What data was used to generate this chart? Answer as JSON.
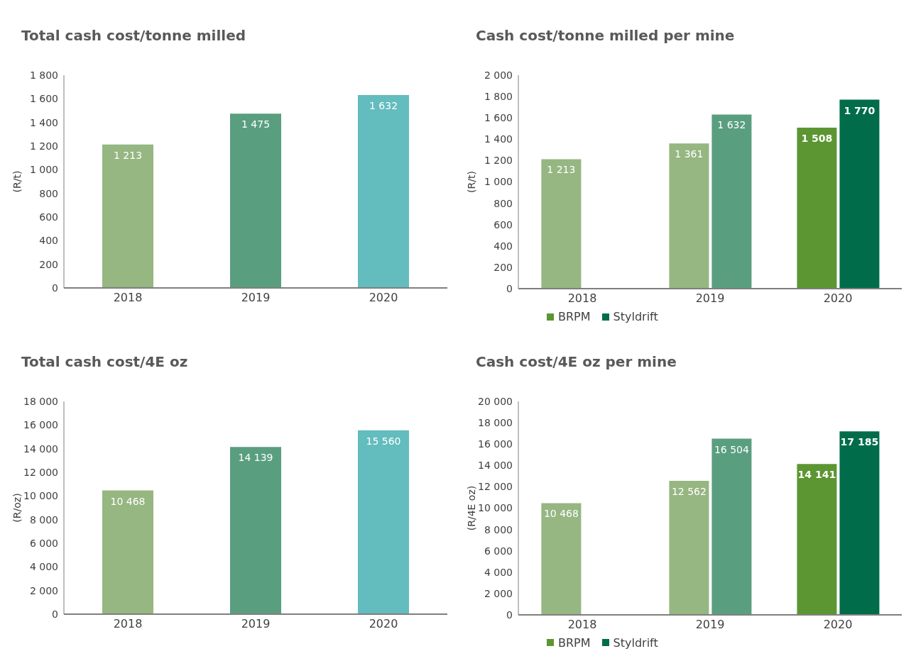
{
  "chart_data": [
    {
      "type": "bar",
      "title": "Total cash cost/tonne milled",
      "ylabel": "(R/t)",
      "categories": [
        "2018",
        "2019",
        "2020"
      ],
      "values": [
        1213,
        1475,
        1632
      ],
      "colors": [
        "#96b682",
        "#5a9e80",
        "#63bcbd"
      ],
      "value_labels": [
        "1 213",
        "1 475",
        "1 632"
      ],
      "ylim": [
        0,
        1800
      ],
      "yticks": [
        {
          "value": 0,
          "label": "0"
        },
        {
          "value": 200,
          "label": "200"
        },
        {
          "value": 400,
          "label": "400"
        },
        {
          "value": 600,
          "label": "600"
        },
        {
          "value": 800,
          "label": "800"
        },
        {
          "value": 1000,
          "label": "1 000"
        },
        {
          "value": 1200,
          "label": "1 200"
        },
        {
          "value": 1400,
          "label": "1 400"
        },
        {
          "value": 1600,
          "label": "1 600"
        },
        {
          "value": 1800,
          "label": "1 800"
        }
      ],
      "grid": false,
      "legend": false
    },
    {
      "type": "bar",
      "title": "Cash cost/tonne milled per mine",
      "ylabel": "(R/t)",
      "categories": [
        "2018",
        "2019",
        "2020"
      ],
      "series": [
        {
          "name": "BRPM",
          "color": "#5c9632",
          "colors": [
            "#96b682",
            "#96b682",
            "#5c9632"
          ],
          "values": [
            1213,
            1361,
            1508
          ],
          "value_labels": [
            "1 213",
            "1 361",
            "1 508"
          ]
        },
        {
          "name": "Styldrift",
          "color": "#006c4a",
          "colors": [
            "#5a9e80",
            "#5a9e80",
            "#006c4a"
          ],
          "values": [
            null,
            1632,
            1770
          ],
          "value_labels": [
            null,
            "1 632",
            "1 770"
          ]
        }
      ],
      "ylim": [
        0,
        2000
      ],
      "yticks": [
        {
          "value": 0,
          "label": "0"
        },
        {
          "value": 200,
          "label": "200"
        },
        {
          "value": 400,
          "label": "400"
        },
        {
          "value": 600,
          "label": "600"
        },
        {
          "value": 800,
          "label": "800"
        },
        {
          "value": 1000,
          "label": "1 000"
        },
        {
          "value": 1200,
          "label": "1 200"
        },
        {
          "value": 1400,
          "label": "1 400"
        },
        {
          "value": 1600,
          "label": "1 600"
        },
        {
          "value": 1800,
          "label": "1 800"
        },
        {
          "value": 2000,
          "label": "2 000"
        }
      ],
      "grid": false,
      "legend": "bottom left"
    },
    {
      "type": "bar",
      "title": "Total cash cost/4E oz",
      "ylabel": "(R/oz)",
      "categories": [
        "2018",
        "2019",
        "2020"
      ],
      "values": [
        10468,
        14139,
        15560
      ],
      "colors": [
        "#96b682",
        "#5a9e80",
        "#63bcbd"
      ],
      "value_labels": [
        "10 468",
        "14 139",
        "15 560"
      ],
      "ylim": [
        0,
        18000
      ],
      "yticks": [
        {
          "value": 0,
          "label": "0"
        },
        {
          "value": 2000,
          "label": "2 000"
        },
        {
          "value": 4000,
          "label": "4 000"
        },
        {
          "value": 6000,
          "label": "6 000"
        },
        {
          "value": 8000,
          "label": "8 000"
        },
        {
          "value": 10000,
          "label": "10 000"
        },
        {
          "value": 12000,
          "label": "12 000"
        },
        {
          "value": 14000,
          "label": "14 000"
        },
        {
          "value": 16000,
          "label": "16 000"
        },
        {
          "value": 18000,
          "label": "18 000"
        }
      ],
      "grid": false,
      "legend": false
    },
    {
      "type": "bar",
      "title": "Cash cost/4E oz per mine",
      "ylabel": "(R/4E oz)",
      "categories": [
        "2018",
        "2019",
        "2020"
      ],
      "series": [
        {
          "name": "BRPM",
          "color": "#5c9632",
          "colors": [
            "#96b682",
            "#96b682",
            "#5c9632"
          ],
          "values": [
            10468,
            12562,
            14141
          ],
          "value_labels": [
            "10 468",
            "12 562",
            "14 141"
          ]
        },
        {
          "name": "Styldrift",
          "color": "#006c4a",
          "colors": [
            "#5a9e80",
            "#5a9e80",
            "#006c4a"
          ],
          "values": [
            null,
            16504,
            17185
          ],
          "value_labels": [
            null,
            "16 504",
            "17 185"
          ]
        }
      ],
      "ylim": [
        0,
        20000
      ],
      "yticks": [
        {
          "value": 0,
          "label": "0"
        },
        {
          "value": 2000,
          "label": "2 000"
        },
        {
          "value": 4000,
          "label": "4 000"
        },
        {
          "value": 6000,
          "label": "6 000"
        },
        {
          "value": 8000,
          "label": "8 000"
        },
        {
          "value": 10000,
          "label": "10 000"
        },
        {
          "value": 12000,
          "label": "12 000"
        },
        {
          "value": 14000,
          "label": "14 000"
        },
        {
          "value": 16000,
          "label": "16 000"
        },
        {
          "value": 18000,
          "label": "18 000"
        },
        {
          "value": 20000,
          "label": "20 000"
        }
      ],
      "grid": false,
      "legend": "bottom left"
    }
  ]
}
